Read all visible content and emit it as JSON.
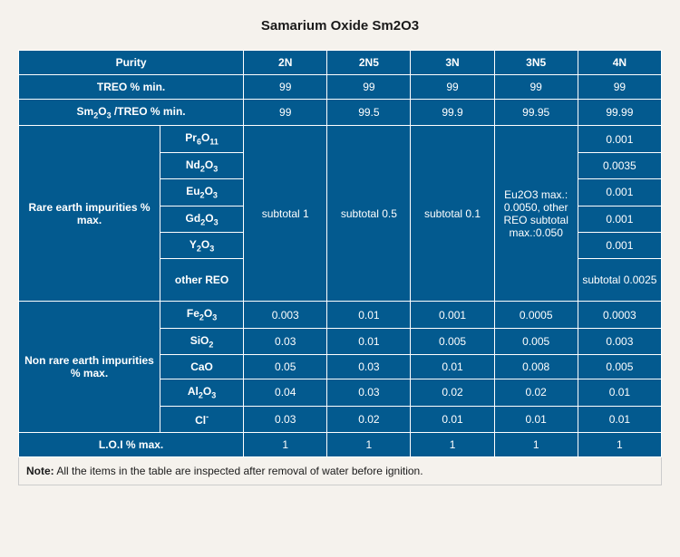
{
  "title": "Samarium Oxide Sm2O3",
  "headers": {
    "purity": "Purity",
    "cols": [
      "2N",
      "2N5",
      "3N",
      "3N5",
      "4N"
    ]
  },
  "rows": {
    "treo": {
      "label": "TREO % min.",
      "values": [
        "99",
        "99",
        "99",
        "99",
        "99"
      ]
    },
    "ratio": {
      "label_html": "Sm<sub>2</sub>O<sub>3</sub> /TREO % min.",
      "values": [
        "99",
        "99.5",
        "99.9",
        "99.95",
        "99.99"
      ]
    },
    "rare": {
      "group_label": "Rare earth impurities % max.",
      "sublabels_html": [
        "Pr<sub>6</sub>O<sub>11</sub>",
        "Nd<sub>2</sub>O<sub>3</sub>",
        "Eu<sub>2</sub>O<sub>3</sub>",
        "Gd<sub>2</sub>O<sub>3</sub>",
        "Y<sub>2</sub>O<sub>3</sub>",
        "other REO"
      ],
      "merged": {
        "c2N": "subtotal 1",
        "c2N5": "subtotal 0.5",
        "c3N": "subtotal 0.1",
        "c3N5": "Eu2O3 max.: 0.0050, other REO subtotal max.:0.050"
      },
      "col4N": [
        "0.001",
        "0.0035",
        "0.001",
        "0.001",
        "0.001",
        "subtotal 0.0025"
      ]
    },
    "nonrare": {
      "group_label": "Non rare earth impurities % max.",
      "items": [
        {
          "label_html": "Fe<sub>2</sub>O<sub>3</sub>",
          "values": [
            "0.003",
            "0.01",
            "0.001",
            "0.0005",
            "0.0003"
          ]
        },
        {
          "label_html": "SiO<sub>2</sub>",
          "values": [
            "0.03",
            "0.01",
            "0.005",
            "0.005",
            "0.003"
          ]
        },
        {
          "label_html": "CaO",
          "values": [
            "0.05",
            "0.03",
            "0.01",
            "0.008",
            "0.005"
          ]
        },
        {
          "label_html": "Al<sub>2</sub>O<sub>3</sub>",
          "values": [
            "0.04",
            "0.03",
            "0.02",
            "0.02",
            "0.01"
          ]
        },
        {
          "label_html": "Cl<sup>-</sup>",
          "values": [
            "0.03",
            "0.02",
            "0.01",
            "0.01",
            "0.01"
          ]
        }
      ]
    },
    "loi": {
      "label": "L.O.I  % max.",
      "values": [
        "1",
        "1",
        "1",
        "1",
        "1"
      ]
    }
  },
  "note": {
    "prefix": "Note:",
    "text": " All the items in the table are inspected after removal of water before ignition."
  },
  "colors": {
    "cell_bg": "#035a8f",
    "cell_fg": "#ffffff",
    "border": "#ffffff",
    "page_bg": "#f5f2ed"
  }
}
